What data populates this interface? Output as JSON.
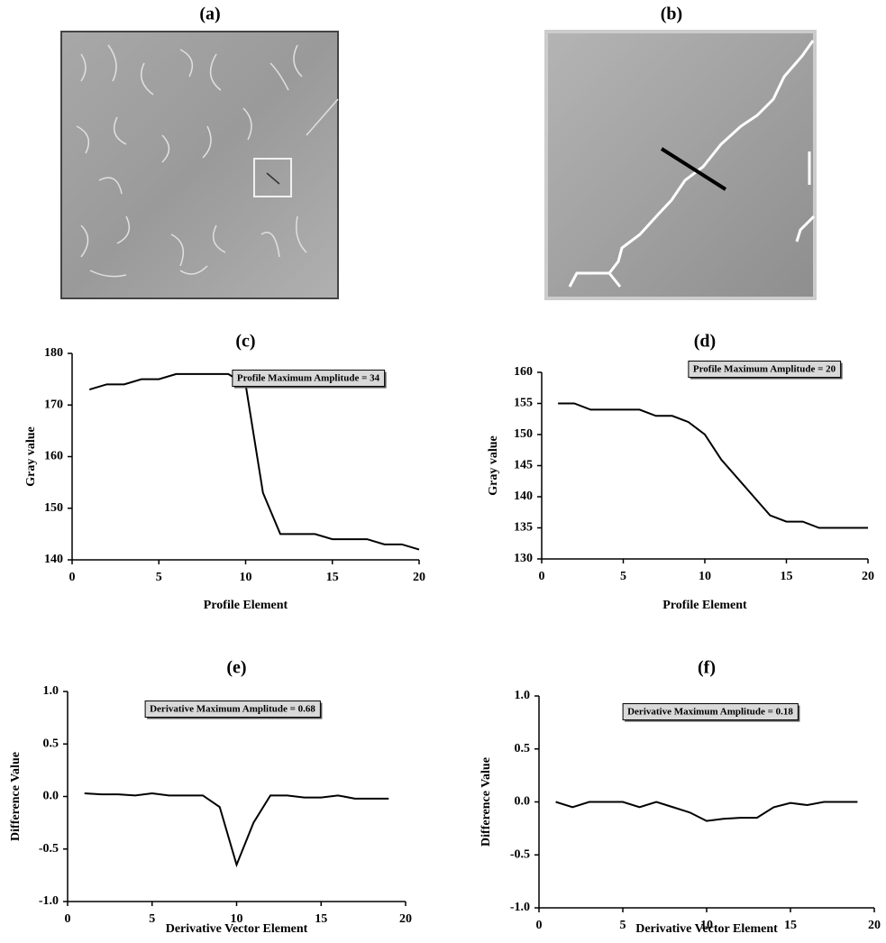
{
  "panels": [
    {
      "label": "(a)"
    },
    {
      "label": "(b)"
    }
  ],
  "chart_data": [
    {
      "type": "line",
      "title": "(c)",
      "xlabel": "Profile Element",
      "ylabel": "Gray value",
      "annotation": "Profile Maximum Amplitude = 34",
      "color": "#000000",
      "x": [
        1,
        2,
        3,
        4,
        5,
        6,
        7,
        8,
        9,
        10,
        11,
        12,
        13,
        14,
        15,
        16,
        17,
        18,
        19,
        20
      ],
      "values": [
        173,
        174,
        174,
        175,
        175,
        176,
        176,
        176,
        176,
        174,
        153,
        145,
        145,
        145,
        144,
        144,
        144,
        143,
        143,
        142
      ],
      "xlim": [
        0,
        20
      ],
      "xticks": [
        0,
        5,
        10,
        15,
        20
      ],
      "ylim": [
        140,
        180
      ],
      "yticks": [
        140,
        150,
        160,
        170,
        180
      ]
    },
    {
      "type": "line",
      "title": "(d)",
      "xlabel": "Profile Element",
      "ylabel": "Gray value",
      "annotation": "Profile Maximum Amplitude = 20",
      "color": "#000000",
      "x": [
        1,
        2,
        3,
        4,
        5,
        6,
        7,
        8,
        9,
        10,
        11,
        12,
        13,
        14,
        15,
        16,
        17,
        18,
        19,
        20
      ],
      "values": [
        155,
        155,
        154,
        154,
        154,
        154,
        153,
        153,
        152,
        150,
        146,
        143,
        140,
        137,
        136,
        136,
        135,
        135,
        135,
        135
      ],
      "xlim": [
        0,
        20
      ],
      "xticks": [
        0,
        5,
        10,
        15,
        20
      ],
      "ylim": [
        130,
        160
      ],
      "yticks": [
        130,
        135,
        140,
        145,
        150,
        155,
        160
      ]
    },
    {
      "type": "line",
      "title": "(e)",
      "xlabel": "Derivative Vector Element",
      "ylabel": "Difference Value",
      "annotation": "Derivative Maximum Amplitude = 0.68",
      "color": "#000000",
      "x": [
        1,
        2,
        3,
        4,
        5,
        6,
        7,
        8,
        9,
        10,
        11,
        12,
        13,
        14,
        15,
        16,
        17,
        18,
        19
      ],
      "values": [
        0.03,
        0.02,
        0.02,
        0.01,
        0.03,
        0.01,
        0.01,
        0.01,
        -0.1,
        -0.65,
        -0.25,
        0.01,
        0.01,
        -0.01,
        -0.01,
        0.01,
        -0.02,
        -0.02,
        -0.02
      ],
      "xlim": [
        0,
        20
      ],
      "xticks": [
        0,
        5,
        10,
        15,
        20
      ],
      "ylim": [
        -1,
        1
      ],
      "yticks": [
        {
          "value": -1,
          "label": "-1.0"
        },
        -0.5,
        {
          "value": 0,
          "label": "0.0"
        },
        0.5,
        {
          "value": 1,
          "label": "1.0"
        }
      ]
    },
    {
      "type": "line",
      "title": "(f)",
      "xlabel": "Derivative Vector Element",
      "ylabel": "Difference Value",
      "annotation": "Derivative Maximum Amplitude = 0.18",
      "color": "#000000",
      "x": [
        1,
        2,
        3,
        4,
        5,
        6,
        7,
        8,
        9,
        10,
        11,
        12,
        13,
        14,
        15,
        16,
        17,
        18,
        19
      ],
      "values": [
        0,
        -0.05,
        0,
        0,
        0,
        -0.05,
        0,
        -0.05,
        -0.1,
        -0.18,
        -0.16,
        -0.15,
        -0.15,
        -0.05,
        -0.01,
        -0.03,
        0,
        0,
        0
      ],
      "xlim": [
        0,
        20
      ],
      "xticks": [
        0,
        5,
        10,
        15,
        20
      ],
      "ylim": [
        -1,
        1
      ],
      "yticks": [
        {
          "value": -1,
          "label": "-1.0"
        },
        -0.5,
        {
          "value": 0,
          "label": "0.0"
        },
        0.5,
        {
          "value": 1,
          "label": "1.0"
        }
      ]
    }
  ]
}
